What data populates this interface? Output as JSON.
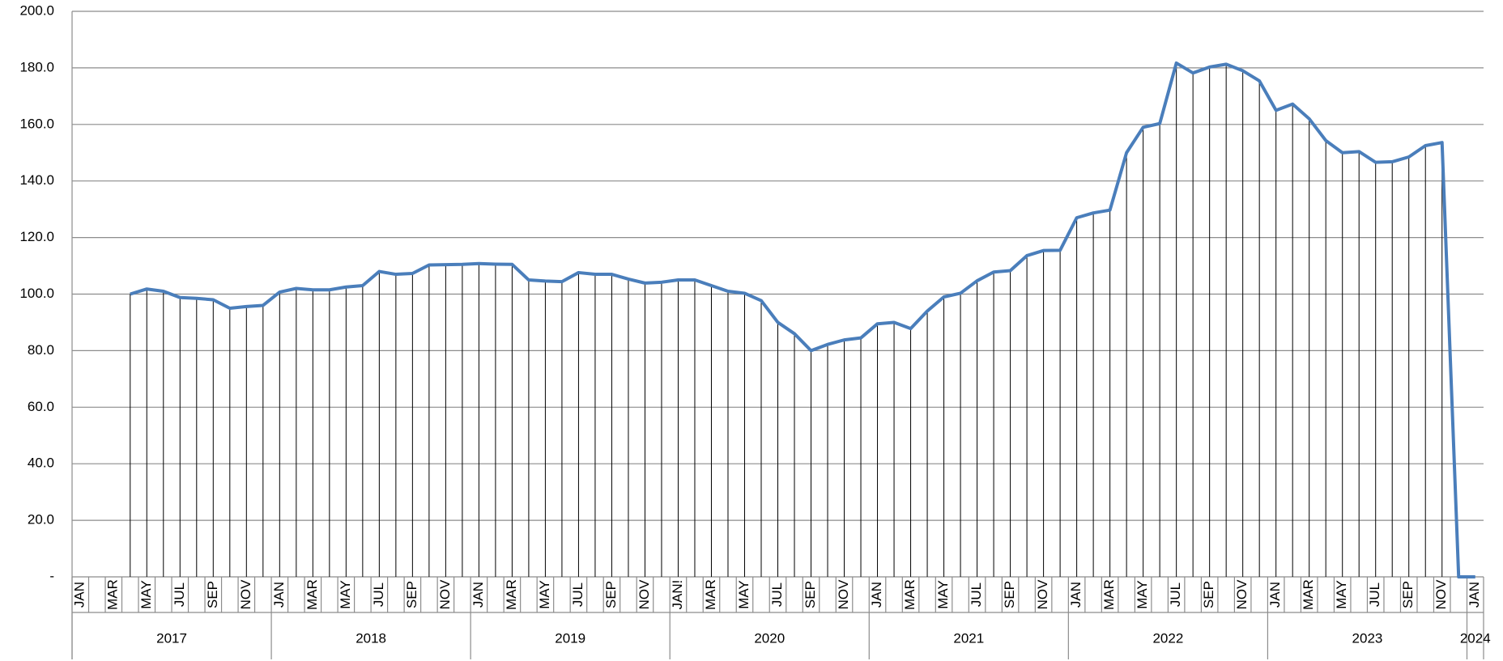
{
  "chart_data": {
    "type": "line",
    "color": "#4a7ebb",
    "drop_lines": true,
    "grid": true,
    "categories": [
      "JAN",
      null,
      "MAR",
      null,
      "MAY",
      null,
      "JUL",
      null,
      "SEP",
      null,
      "NOV",
      null,
      "JAN",
      null,
      "MAR",
      null,
      "MAY",
      null,
      "JUL",
      null,
      "SEP",
      null,
      "NOV",
      null,
      "JAN",
      null,
      "MAR",
      null,
      "MAY",
      null,
      "JUL",
      null,
      "SEP",
      null,
      "NOV",
      null,
      "JAN!",
      null,
      "MAR",
      null,
      "MAY",
      null,
      "JUL",
      null,
      "SEP",
      null,
      "NOV",
      null,
      "JAN",
      null,
      "MAR",
      null,
      "MAY",
      null,
      "JUL",
      null,
      "SEP",
      null,
      "NOV",
      null,
      "JAN",
      null,
      "MAR",
      null,
      "MAY",
      null,
      "JUL",
      null,
      "SEP",
      null,
      "NOV",
      null,
      "JAN",
      null,
      "MAR",
      null,
      "MAY",
      null,
      "JUL",
      null,
      "SEP",
      null,
      "NOV",
      null,
      "JAN"
    ],
    "x_groups": [
      "2017",
      "2018",
      "2019",
      "2020",
      "2021",
      "2022",
      "2023",
      "2024"
    ],
    "values": [
      null,
      null,
      null,
      100,
      101.8,
      101,
      98.8,
      98.5,
      98,
      95,
      95.6,
      96,
      100.7,
      102,
      101.5,
      101.5,
      102.5,
      103,
      108,
      107,
      107.3,
      110.3,
      110.4,
      110.5,
      110.8,
      110.6,
      110.5,
      105,
      104.6,
      104.4,
      107.6,
      107,
      107,
      105.3,
      103.9,
      104.2,
      105,
      105,
      103,
      101,
      100.3,
      97.7,
      90,
      86,
      80,
      82.2,
      83.8,
      84.5,
      89.5,
      90,
      87.8,
      94,
      99,
      100.3,
      104.7,
      107.8,
      108.3,
      113.6,
      115.4,
      115.5,
      127,
      128.7,
      129.7,
      150,
      159,
      160.3,
      181.7,
      178.2,
      180.3,
      181.3,
      179,
      175.4,
      165,
      167.2,
      162,
      154.3,
      150,
      150.4,
      146.6,
      146.8,
      148.5,
      152.5,
      153.6,
      0,
      0
    ],
    "ylim": [
      0,
      200
    ],
    "yticks": [
      {
        "value": 0,
        "label": "-"
      },
      {
        "value": 20,
        "label": "20.0"
      },
      {
        "value": 40,
        "label": "40.0"
      },
      {
        "value": 60,
        "label": "60.0"
      },
      {
        "value": 80,
        "label": "80.0"
      },
      {
        "value": 100,
        "label": "100.0"
      },
      {
        "value": 120,
        "label": "120.0"
      },
      {
        "value": 140,
        "label": "140.0"
      },
      {
        "value": 160,
        "label": "160.0"
      },
      {
        "value": 180,
        "label": "180.0"
      },
      {
        "value": 200,
        "label": "200.0"
      }
    ]
  }
}
